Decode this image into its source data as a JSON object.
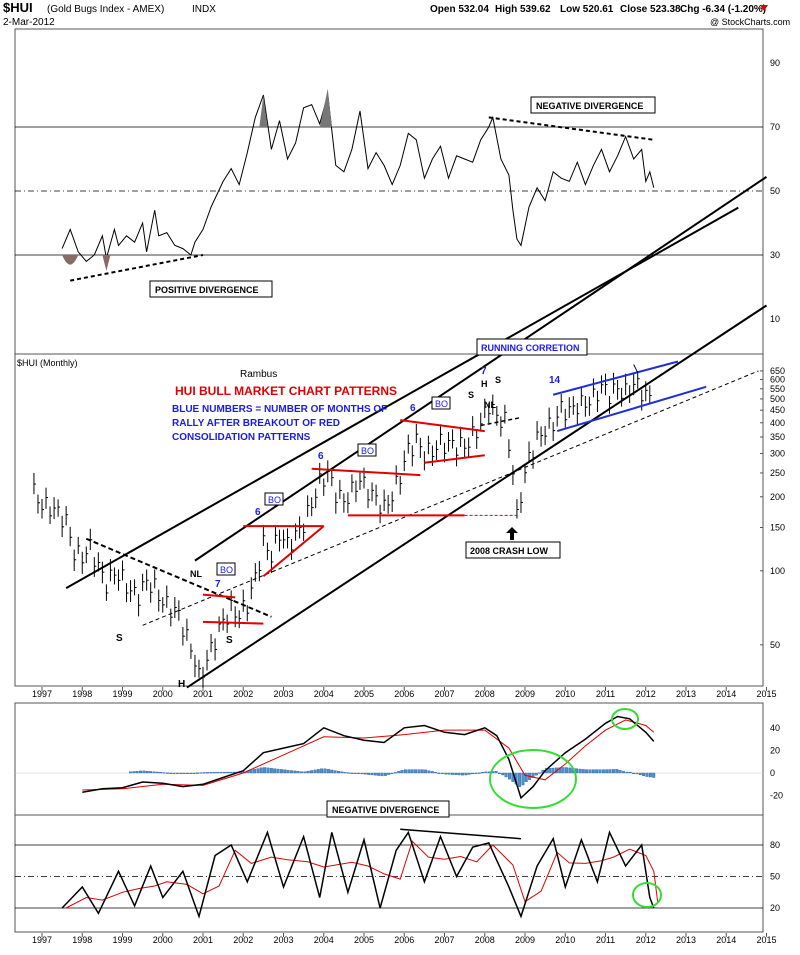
{
  "header": {
    "symbol": "$HUI",
    "name": "(Gold Bugs Index - AMEX)",
    "exchange": "INDX",
    "date": "2-Mar-2012",
    "open": "Open 532.04",
    "high": "High 539.62",
    "low": "Low 520.61",
    "close": "Close 523.38",
    "change": "Chg -6.34 (-1.20%)",
    "copyright": "@ StockCharts.com"
  },
  "colors": {
    "frame": "#555555",
    "candles": "#000000",
    "red_patterns": "#e00000",
    "blue_channel": "#1f2fd8",
    "blue_text": "#1a1aee",
    "red_title": "#e00000",
    "histogram": "#4a8fcf",
    "signal_red": "#e00000",
    "green_circle": "#33dd33",
    "rsi_fill": "#8a6a66",
    "shaded_peak": "#777777"
  },
  "chart_data": [
    {
      "type": "line",
      "panel": "RSI (top)",
      "x_range": [
        1997,
        2015
      ],
      "y_range": [
        20,
        95
      ],
      "y_ticks": [
        30,
        50,
        70,
        90
      ],
      "reference_lines": [
        30,
        50,
        70
      ],
      "points": [
        [
          1997.5,
          32
        ],
        [
          1997.7,
          38
        ],
        [
          1997.9,
          31
        ],
        [
          1998.1,
          28
        ],
        [
          1998.3,
          30
        ],
        [
          1998.5,
          36
        ],
        [
          1998.6,
          29
        ],
        [
          1998.8,
          38
        ],
        [
          1998.9,
          33
        ],
        [
          1999.1,
          36
        ],
        [
          1999.3,
          34
        ],
        [
          1999.5,
          40
        ],
        [
          1999.6,
          31
        ],
        [
          1999.8,
          44
        ],
        [
          1999.9,
          36
        ],
        [
          2000.1,
          37
        ],
        [
          2000.3,
          33
        ],
        [
          2000.5,
          32
        ],
        [
          2000.7,
          30
        ],
        [
          2000.8,
          34
        ],
        [
          2001.0,
          38
        ],
        [
          2001.2,
          45
        ],
        [
          2001.5,
          53
        ],
        [
          2001.7,
          57
        ],
        [
          2001.9,
          52
        ],
        [
          2002.1,
          62
        ],
        [
          2002.3,
          73
        ],
        [
          2002.5,
          80
        ],
        [
          2002.7,
          63
        ],
        [
          2002.9,
          72
        ],
        [
          2003.1,
          60
        ],
        [
          2003.3,
          65
        ],
        [
          2003.5,
          76
        ],
        [
          2003.7,
          77
        ],
        [
          2003.9,
          71
        ],
        [
          2004.1,
          80
        ],
        [
          2004.3,
          58
        ],
        [
          2004.5,
          56
        ],
        [
          2004.7,
          63
        ],
        [
          2004.9,
          75
        ],
        [
          2005.1,
          57
        ],
        [
          2005.3,
          62
        ],
        [
          2005.5,
          58
        ],
        [
          2005.7,
          52
        ],
        [
          2005.9,
          58
        ],
        [
          2006.1,
          68
        ],
        [
          2006.3,
          66
        ],
        [
          2006.5,
          54
        ],
        [
          2006.7,
          60
        ],
        [
          2006.9,
          64
        ],
        [
          2007.1,
          54
        ],
        [
          2007.3,
          61
        ],
        [
          2007.5,
          60
        ],
        [
          2007.7,
          59
        ],
        [
          2007.9,
          66
        ],
        [
          2008.1,
          70
        ],
        [
          2008.2,
          73
        ],
        [
          2008.4,
          60
        ],
        [
          2008.6,
          55
        ],
        [
          2008.7,
          44
        ],
        [
          2008.8,
          35
        ],
        [
          2008.9,
          33
        ],
        [
          2009.1,
          45
        ],
        [
          2009.3,
          51
        ],
        [
          2009.5,
          47
        ],
        [
          2009.7,
          56
        ],
        [
          2009.9,
          54
        ],
        [
          2010.1,
          53
        ],
        [
          2010.3,
          59
        ],
        [
          2010.5,
          52
        ],
        [
          2010.7,
          58
        ],
        [
          2010.9,
          63
        ],
        [
          2011.1,
          56
        ],
        [
          2011.3,
          61
        ],
        [
          2011.5,
          67
        ],
        [
          2011.7,
          60
        ],
        [
          2011.9,
          63
        ],
        [
          2012.0,
          53
        ],
        [
          2012.1,
          56
        ],
        [
          2012.2,
          51
        ]
      ],
      "annotations": [
        "NEGATIVE DIVERGENCE",
        "POSITIVE DIVERGENCE"
      ]
    },
    {
      "type": "line",
      "panel": "$HUI (Monthly) price",
      "subtype": "ohlc-bars",
      "scale": "log",
      "x_range": [
        1997,
        2015
      ],
      "y_range": [
        34,
        700
      ],
      "y_ticks": [
        50,
        100,
        150,
        200,
        250,
        300,
        350,
        400,
        450,
        500,
        550,
        600,
        650
      ],
      "overflow_tick": 10,
      "close": [
        [
          1996.8,
          210
        ],
        [
          1997.0,
          185
        ],
        [
          1997.2,
          180
        ],
        [
          1997.4,
          170
        ],
        [
          1997.6,
          155
        ],
        [
          1997.8,
          115
        ],
        [
          1998.0,
          110
        ],
        [
          1998.2,
          120
        ],
        [
          1998.4,
          100
        ],
        [
          1998.6,
          85
        ],
        [
          1998.8,
          95
        ],
        [
          1999.0,
          90
        ],
        [
          1999.2,
          80
        ],
        [
          1999.4,
          78
        ],
        [
          1999.6,
          90
        ],
        [
          1999.8,
          85
        ],
        [
          2000.0,
          75
        ],
        [
          2000.2,
          72
        ],
        [
          2000.4,
          68
        ],
        [
          2000.6,
          55
        ],
        [
          2000.8,
          45
        ],
        [
          2000.9,
          38
        ],
        [
          2001.1,
          45
        ],
        [
          2001.3,
          55
        ],
        [
          2001.5,
          65
        ],
        [
          2001.7,
          72
        ],
        [
          2001.9,
          68
        ],
        [
          2002.1,
          75
        ],
        [
          2002.3,
          95
        ],
        [
          2002.5,
          130
        ],
        [
          2002.7,
          115
        ],
        [
          2002.9,
          140
        ],
        [
          2003.1,
          125
        ],
        [
          2003.3,
          135
        ],
        [
          2003.5,
          150
        ],
        [
          2003.7,
          180
        ],
        [
          2003.9,
          220
        ],
        [
          2004.1,
          240
        ],
        [
          2004.3,
          200
        ],
        [
          2004.5,
          185
        ],
        [
          2004.7,
          205
        ],
        [
          2004.9,
          230
        ],
        [
          2005.1,
          210
        ],
        [
          2005.3,
          195
        ],
        [
          2005.5,
          180
        ],
        [
          2005.7,
          205
        ],
        [
          2005.9,
          250
        ],
        [
          2006.1,
          320
        ],
        [
          2006.3,
          350
        ],
        [
          2006.5,
          310
        ],
        [
          2006.7,
          320
        ],
        [
          2006.9,
          345
        ],
        [
          2007.1,
          340
        ],
        [
          2007.3,
          335
        ],
        [
          2007.5,
          330
        ],
        [
          2007.7,
          360
        ],
        [
          2007.9,
          400
        ],
        [
          2008.1,
          480
        ],
        [
          2008.3,
          420
        ],
        [
          2008.5,
          400
        ],
        [
          2008.7,
          250
        ],
        [
          2008.8,
          160
        ],
        [
          2008.9,
          200
        ],
        [
          2009.1,
          280
        ],
        [
          2009.3,
          330
        ],
        [
          2009.5,
          360
        ],
        [
          2009.7,
          380
        ],
        [
          2009.9,
          440
        ],
        [
          2010.1,
          430
        ],
        [
          2010.3,
          460
        ],
        [
          2010.5,
          470
        ],
        [
          2010.7,
          500
        ],
        [
          2010.9,
          560
        ],
        [
          2011.1,
          530
        ],
        [
          2011.3,
          560
        ],
        [
          2011.5,
          540
        ],
        [
          2011.7,
          600
        ],
        [
          2011.9,
          560
        ],
        [
          2012.1,
          520
        ],
        [
          2012.2,
          523
        ]
      ],
      "annotations": [
        "Rambus",
        "HUI BULL MARKET CHART PATTERNS",
        "BLUE NUMBERS = NUMBER OF MONTHS OF",
        "RALLY AFTER BREAKOUT OF RED",
        "CONSOLIDATION PATTERNS",
        "RUNNING CORRETION",
        "2008 CRASH LOW",
        "BO",
        "NL",
        "S",
        "H",
        "7",
        "6",
        "14"
      ]
    },
    {
      "type": "line",
      "panel": "MACD",
      "x_range": [
        1997,
        2015
      ],
      "y_range": [
        -25,
        50
      ],
      "y_ticks": [
        -20,
        0,
        20,
        40
      ],
      "macd": [
        [
          1998.0,
          -17
        ],
        [
          1998.5,
          -14
        ],
        [
          1999.0,
          -13
        ],
        [
          1999.5,
          -8
        ],
        [
          2000.0,
          -9
        ],
        [
          2000.5,
          -12
        ],
        [
          2001.0,
          -10
        ],
        [
          2001.5,
          -4
        ],
        [
          2002.0,
          2
        ],
        [
          2002.5,
          18
        ],
        [
          2003.0,
          22
        ],
        [
          2003.5,
          26
        ],
        [
          2004.0,
          40
        ],
        [
          2004.5,
          33
        ],
        [
          2005.0,
          29
        ],
        [
          2005.5,
          27
        ],
        [
          2006.0,
          40
        ],
        [
          2006.5,
          42
        ],
        [
          2007.0,
          36
        ],
        [
          2007.5,
          34
        ],
        [
          2008.0,
          40
        ],
        [
          2008.3,
          33
        ],
        [
          2008.6,
          12
        ],
        [
          2008.9,
          -22
        ],
        [
          2009.2,
          -12
        ],
        [
          2009.5,
          2
        ],
        [
          2010.0,
          18
        ],
        [
          2010.5,
          30
        ],
        [
          2011.0,
          44
        ],
        [
          2011.3,
          50
        ],
        [
          2011.6,
          48
        ],
        [
          2012.0,
          36
        ],
        [
          2012.2,
          28
        ]
      ],
      "signal": [
        [
          1998.0,
          -15
        ],
        [
          1999.0,
          -14
        ],
        [
          2000.0,
          -10
        ],
        [
          2001.0,
          -11
        ],
        [
          2002.0,
          0
        ],
        [
          2003.0,
          16
        ],
        [
          2004.0,
          32
        ],
        [
          2005.0,
          31
        ],
        [
          2006.0,
          34
        ],
        [
          2007.0,
          38
        ],
        [
          2008.0,
          38
        ],
        [
          2008.6,
          22
        ],
        [
          2009.0,
          -2
        ],
        [
          2009.5,
          -6
        ],
        [
          2010.0,
          8
        ],
        [
          2010.5,
          24
        ],
        [
          2011.0,
          38
        ],
        [
          2011.5,
          47
        ],
        [
          2012.0,
          42
        ],
        [
          2012.2,
          36
        ]
      ]
    },
    {
      "type": "line",
      "panel": "Slow Stochastic",
      "x_range": [
        1997,
        2015
      ],
      "y_range": [
        0,
        100
      ],
      "y_ticks": [
        20,
        50,
        80
      ],
      "k": [
        [
          1997.5,
          20
        ],
        [
          1998.0,
          40
        ],
        [
          1998.4,
          15
        ],
        [
          1998.9,
          55
        ],
        [
          1999.3,
          22
        ],
        [
          1999.7,
          60
        ],
        [
          2000.0,
          30
        ],
        [
          2000.5,
          55
        ],
        [
          2000.9,
          12
        ],
        [
          2001.3,
          70
        ],
        [
          2001.7,
          80
        ],
        [
          2002.1,
          45
        ],
        [
          2002.6,
          92
        ],
        [
          2003.0,
          40
        ],
        [
          2003.5,
          88
        ],
        [
          2003.9,
          30
        ],
        [
          2004.2,
          92
        ],
        [
          2004.6,
          35
        ],
        [
          2005.0,
          85
        ],
        [
          2005.4,
          20
        ],
        [
          2005.8,
          75
        ],
        [
          2006.1,
          92
        ],
        [
          2006.5,
          45
        ],
        [
          2006.9,
          88
        ],
        [
          2007.3,
          50
        ],
        [
          2007.7,
          78
        ],
        [
          2008.1,
          82
        ],
        [
          2008.6,
          40
        ],
        [
          2008.9,
          12
        ],
        [
          2009.3,
          60
        ],
        [
          2009.7,
          86
        ],
        [
          2010.0,
          40
        ],
        [
          2010.4,
          85
        ],
        [
          2010.8,
          45
        ],
        [
          2011.1,
          92
        ],
        [
          2011.5,
          60
        ],
        [
          2011.9,
          80
        ],
        [
          2012.1,
          30
        ],
        [
          2012.2,
          20
        ]
      ]
    }
  ],
  "axes": {
    "years": [
      "1997",
      "1998",
      "1999",
      "2000",
      "2001",
      "2002",
      "2003",
      "2004",
      "2005",
      "2006",
      "2007",
      "2008",
      "2009",
      "2010",
      "2011",
      "2012",
      "2013",
      "2014",
      "2015"
    ]
  },
  "labels": {
    "rsi_neg_div": "NEGATIVE DIVERGENCE",
    "rsi_pos_div": "POSITIVE DIVERGENCE",
    "price_title": "$HUI (Monthly)",
    "author": "Rambus",
    "chart_title": "HUI BULL MARKET CHART PATTERNS",
    "note_1": "BLUE NUMBERS = NUMBER OF MONTHS OF",
    "note_2": "RALLY AFTER BREAKOUT OF RED",
    "note_3": "CONSOLIDATION PATTERNS",
    "running_correction": "RUNNING CORRETION",
    "crash_low": "2008 CRASH LOW",
    "bo": "BO",
    "nl": "NL",
    "s": "S",
    "h": "H",
    "count_7": "7",
    "count_6": "6",
    "count_14": "14",
    "sto_neg_div": "NEGATIVE DIVERGENCE"
  }
}
